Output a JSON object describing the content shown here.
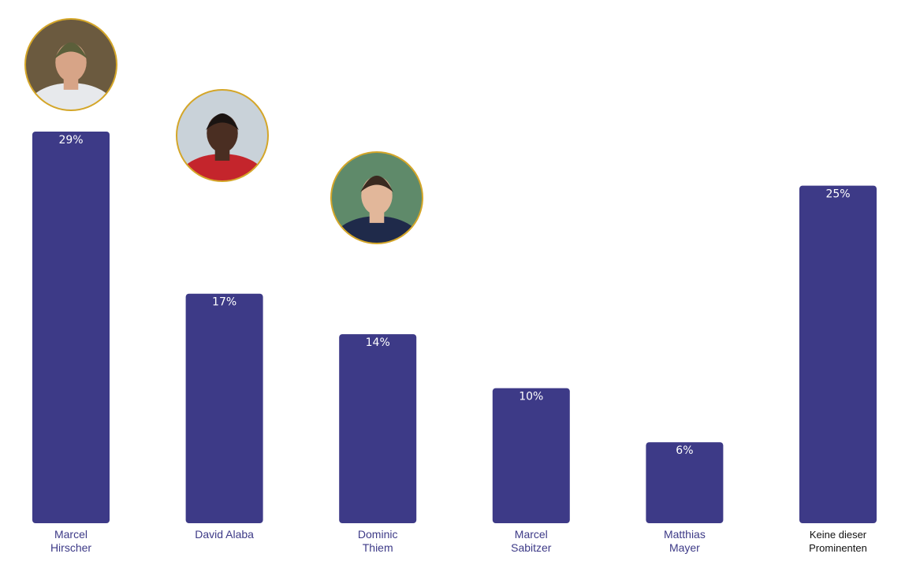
{
  "chart_data": {
    "type": "bar",
    "title": "",
    "xlabel": "",
    "ylabel": "",
    "ylim": [
      0,
      29
    ],
    "unit": "%",
    "grid": false,
    "bar_color": "#3d3a87",
    "categories": [
      [
        "Marcel",
        "Hirscher"
      ],
      [
        "David Alaba"
      ],
      [
        "Dominic",
        "Thiem"
      ],
      [
        "Marcel",
        "Sabitzer"
      ],
      [
        "Matthias",
        "Mayer"
      ],
      [
        "Keine dieser",
        "Prominenten"
      ]
    ],
    "values": [
      29,
      17,
      14,
      10,
      6,
      25
    ],
    "value_labels": [
      "29%",
      "17%",
      "14%",
      "10%",
      "6%",
      "25%"
    ],
    "photos": [
      {
        "category_index": 0,
        "icon": "marcel-hirscher-photo",
        "palette": [
          "#6b5a3f",
          "#e7e9ec",
          "#d7a487",
          "#5b5f3a"
        ]
      },
      {
        "category_index": 1,
        "icon": "david-alaba-photo",
        "palette": [
          "#c9d2d9",
          "#c4252c",
          "#4a2e22",
          "#1a1412"
        ]
      },
      {
        "category_index": 2,
        "icon": "dominic-thiem-photo",
        "palette": [
          "#5f8a6a",
          "#1f2a4a",
          "#e2b79a",
          "#3a2a20"
        ]
      }
    ]
  }
}
